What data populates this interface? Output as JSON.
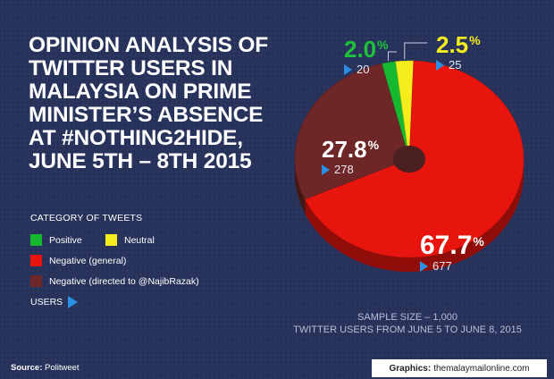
{
  "title_lines": [
    "OPINION ANALYSIS OF",
    "TWITTER USERS IN",
    "MALAYSIA ON PRIME",
    "MINISTER’S ABSENCE",
    "AT #NOTHING2HIDE,",
    "JUNE 5TH – 8TH 2015"
  ],
  "legend": {
    "heading": "CATEGORY OF TWEETS",
    "users_label": "USERS"
  },
  "chart_data": {
    "type": "pie",
    "categories": [
      "Positive",
      "Neutral",
      "Negative (general)",
      "Negative (directed to @NajibRazak)"
    ],
    "percent": [
      2.0,
      2.5,
      67.7,
      27.8
    ],
    "percent_labels": [
      "2.0",
      "2.5",
      "67.7",
      "27.8"
    ],
    "users": [
      20,
      25,
      677,
      278
    ],
    "colors": [
      "#16b82f",
      "#f6ee1c",
      "#e8150f",
      "#6f2626"
    ],
    "total": 1000
  },
  "sample_size": {
    "line1": "SAMPLE SIZE – 1,000",
    "line2": "TWITTER USERS FROM JUNE 5 TO JUNE 8, 2015"
  },
  "footer": {
    "source_label": "Source:",
    "source_value": "Politweet",
    "credit_label": "Graphics:",
    "credit_value": "themalaymailonline.com"
  }
}
